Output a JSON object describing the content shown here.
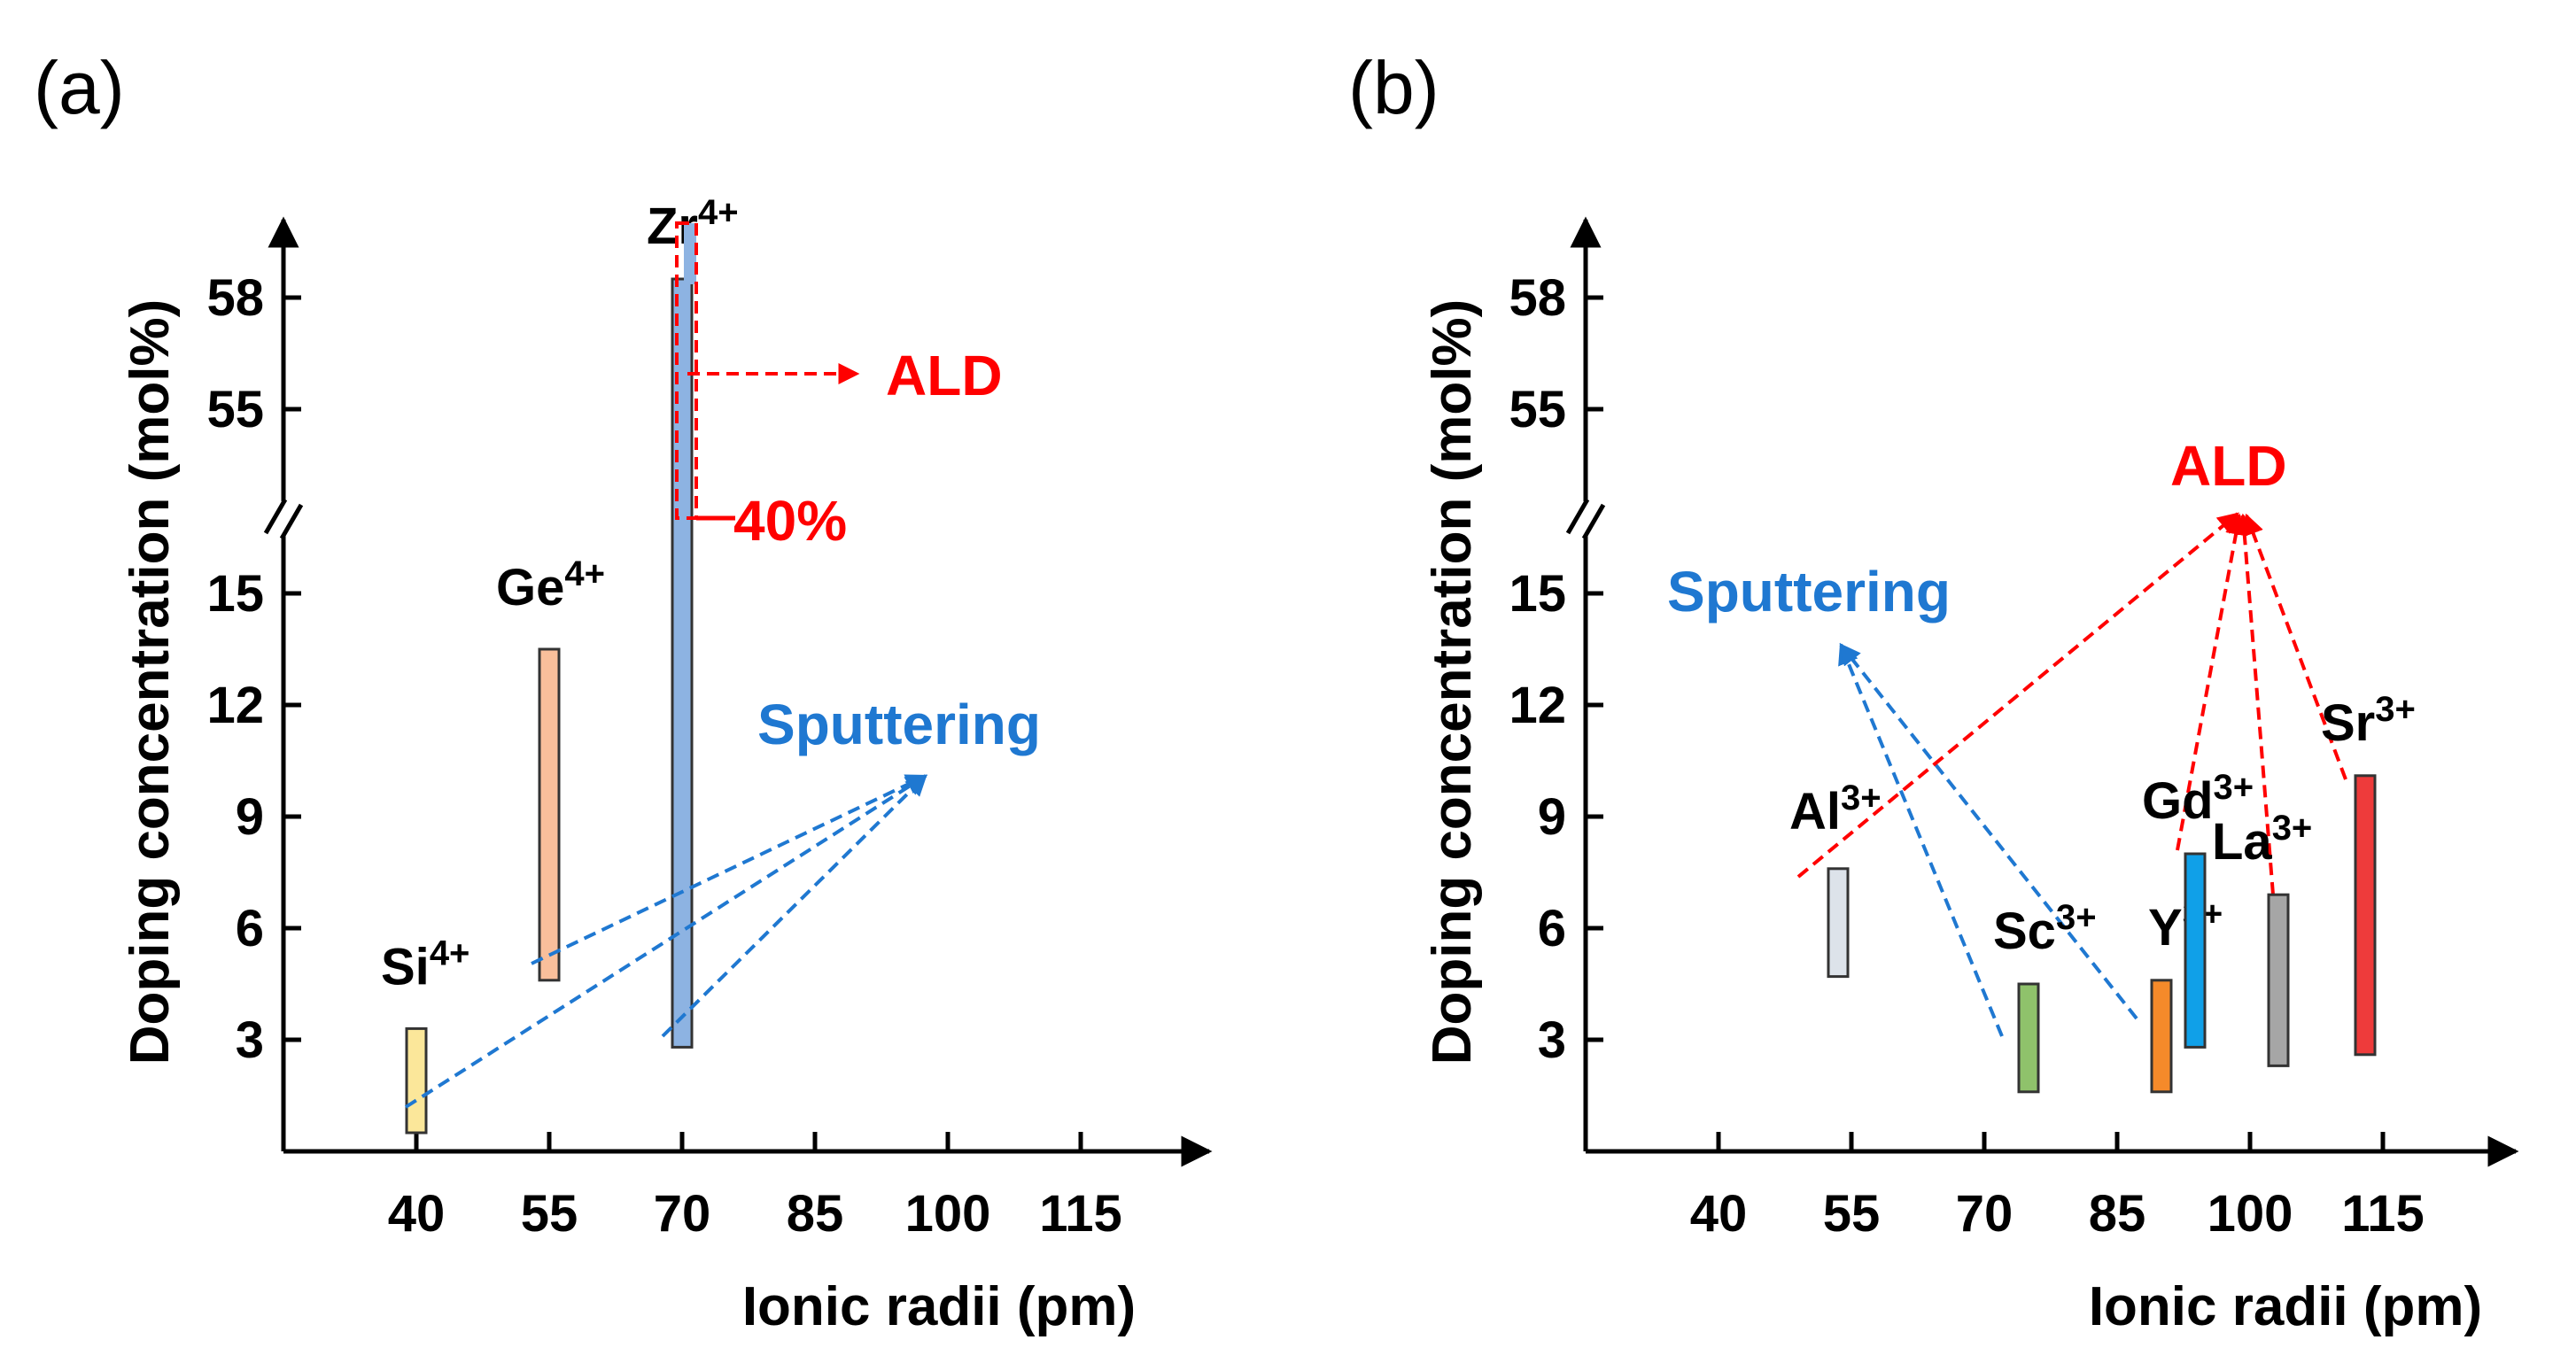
{
  "chart_data": [
    {
      "type": "bar",
      "panel_label": "(a)",
      "xlabel": "Ionic radii (pm)",
      "ylabel": "Doping concentration (mol%)",
      "xticks": [
        "40",
        "55",
        "70",
        "85",
        "100",
        "115"
      ],
      "xtick_values": [
        40,
        55,
        70,
        85,
        100,
        115
      ],
      "yticks_lower": [
        "3",
        "6",
        "9",
        "12",
        "15"
      ],
      "yticks_lower_values": [
        3,
        6,
        9,
        12,
        15
      ],
      "yticks_upper": [
        "55",
        "58"
      ],
      "yticks_upper_values": [
        55,
        58
      ],
      "axis_break": "between 15 and 55 (shown as //)",
      "bars": [
        {
          "ion": "Si",
          "charge": "4+",
          "radius": 40,
          "low": 0.5,
          "high": 3.3,
          "color": "#fbe79a"
        },
        {
          "ion": "Ge",
          "charge": "4+",
          "radius": 55,
          "low": 4.6,
          "high": 13.5,
          "color": "#f9bf9b"
        },
        {
          "ion": "Zr",
          "charge": "4+",
          "radius": 70,
          "low": 2.8,
          "high": 58.5,
          "color": "#8db3e2"
        }
      ],
      "ald_range": {
        "ion": "Zr",
        "charge": "4+",
        "low_label": "40%",
        "high": 60,
        "color": "#ff0000"
      },
      "annotations": {
        "ald": {
          "text": "ALD",
          "color": "#ff0000"
        },
        "sputtering": {
          "text": "Sputtering",
          "color": "#1f78d1"
        },
        "ald_low_label": "40%"
      }
    },
    {
      "type": "bar",
      "panel_label": "(b)",
      "xlabel": "Ionic radii (pm)",
      "ylabel": "Doping concentration (mol%)",
      "xticks": [
        "40",
        "55",
        "70",
        "85",
        "100",
        "115"
      ],
      "xtick_values": [
        40,
        55,
        70,
        85,
        100,
        115
      ],
      "yticks_lower": [
        "3",
        "6",
        "9",
        "12",
        "15"
      ],
      "yticks_lower_values": [
        3,
        6,
        9,
        12,
        15
      ],
      "yticks_upper": [
        "55",
        "58"
      ],
      "yticks_upper_values": [
        55,
        58
      ],
      "axis_break": "between 15 and 55 (shown as //)",
      "bars": [
        {
          "ion": "Al",
          "charge": "3+",
          "radius": 53.5,
          "low": 4.7,
          "high": 7.6,
          "color": "#dde3ea"
        },
        {
          "ion": "Sc",
          "charge": "3+",
          "radius": 75,
          "low": 1.6,
          "high": 4.5,
          "color": "#8fc26b"
        },
        {
          "ion": "Y",
          "charge": "3+",
          "radius": 90,
          "low": 1.6,
          "high": 4.6,
          "color": "#f58a2a"
        },
        {
          "ion": "Gd",
          "charge": "3+",
          "radius": 93.8,
          "low": 2.8,
          "high": 8.0,
          "color": "#10a0e8"
        },
        {
          "ion": "La",
          "charge": "3+",
          "radius": 103.2,
          "low": 2.3,
          "high": 6.9,
          "color": "#a6a6a6"
        },
        {
          "ion": "Sr",
          "charge": "3+",
          "radius": 113,
          "low": 2.6,
          "high": 10.1,
          "color": "#ee3b3b"
        }
      ],
      "annotations": {
        "ald": {
          "text": "ALD",
          "color": "#ff0000"
        },
        "sputtering": {
          "text": "Sputtering",
          "color": "#1f78d1"
        }
      }
    }
  ]
}
